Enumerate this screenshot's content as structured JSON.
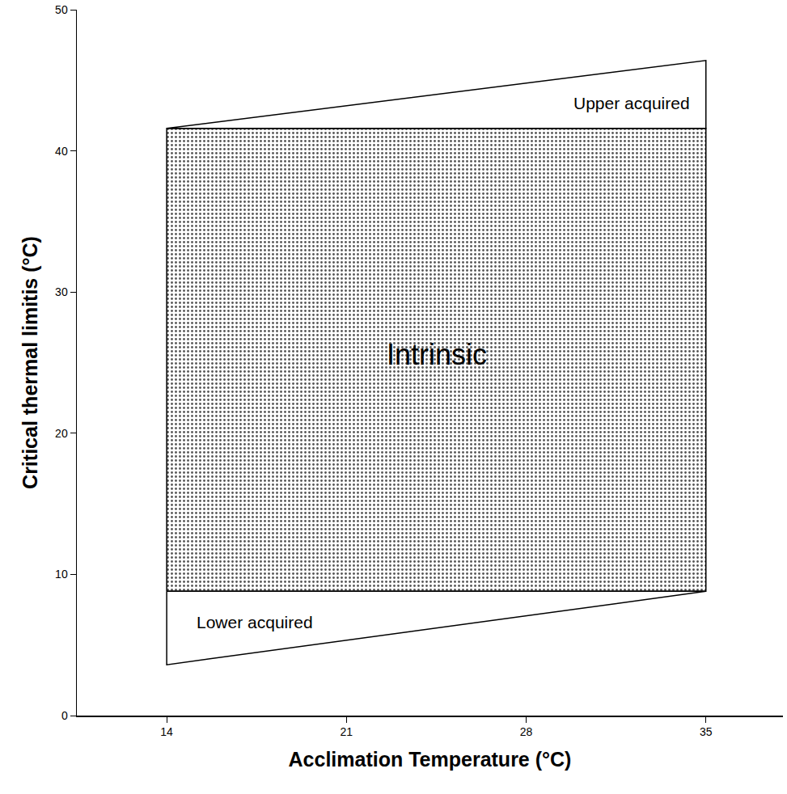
{
  "chart_data": {
    "type": "area",
    "x_label": "Acclimation Temperature (°C)",
    "y_label": "Critical thermal limitis (°C)",
    "xlim": [
      10.5,
      38
    ],
    "xticks": [
      14,
      21,
      28,
      35
    ],
    "ylim": [
      0,
      50
    ],
    "yticks": [
      0,
      10,
      20,
      30,
      40,
      50
    ],
    "grid": false,
    "series": [
      {
        "name": "Intrinsic",
        "x": [
          14,
          35,
          35,
          14
        ],
        "values": [
          8.8,
          8.8,
          41.6,
          41.6
        ],
        "marker": "dots",
        "color": "#000000"
      },
      {
        "name": "Upper acquired",
        "x": [
          14,
          35,
          35
        ],
        "values": [
          41.6,
          46.4,
          41.6
        ],
        "color": "#000000"
      },
      {
        "name": "Lower acquired",
        "x": [
          14,
          35,
          14
        ],
        "values": [
          8.8,
          8.8,
          3.6
        ],
        "color": "#000000"
      }
    ]
  }
}
